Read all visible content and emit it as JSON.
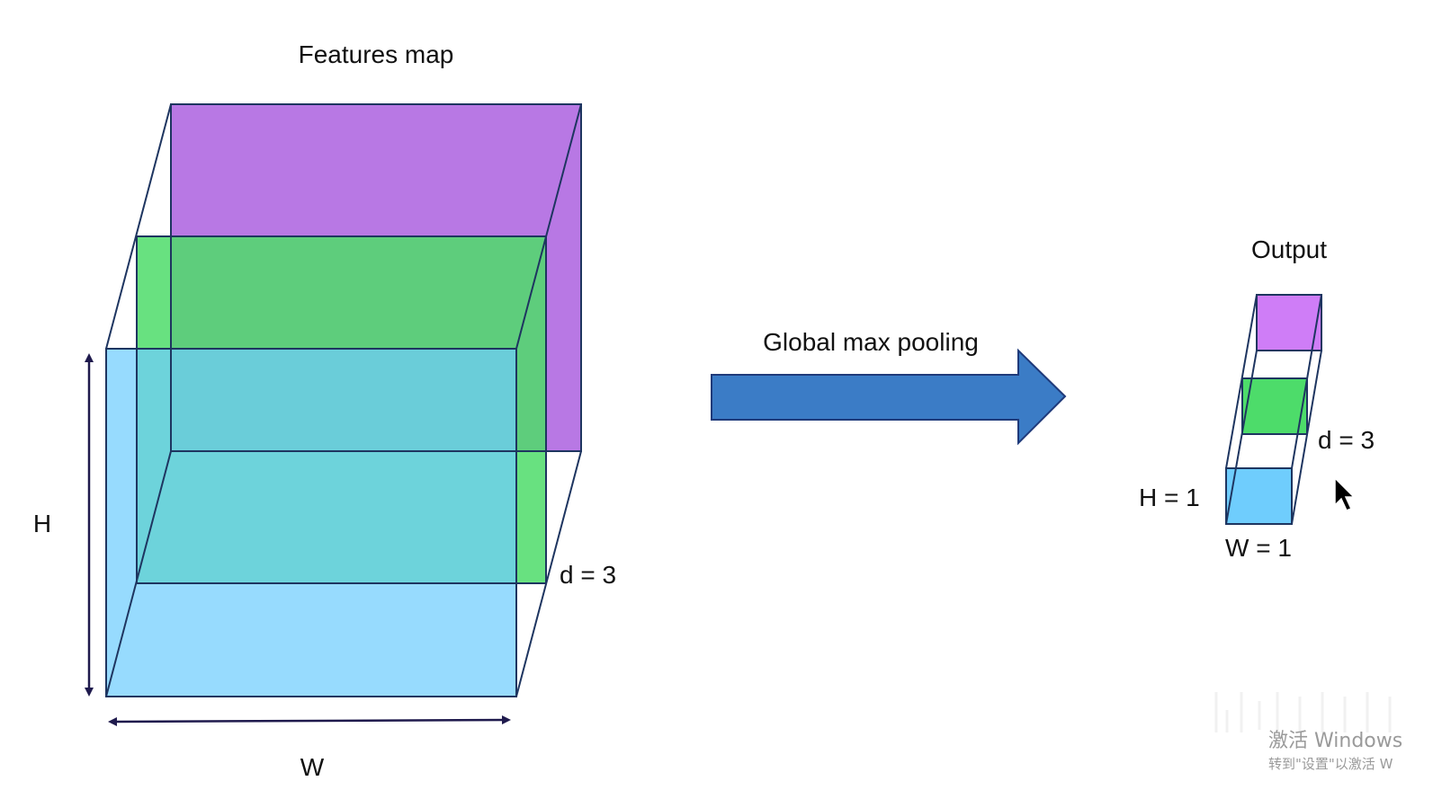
{
  "features_map": {
    "title": "Features map",
    "height_label": "H",
    "width_label": "W",
    "depth_label": "d = 3",
    "layers": [
      {
        "name": "purple",
        "color": "#b878e4"
      },
      {
        "name": "green",
        "color": "#4ddc6a"
      },
      {
        "name": "blue",
        "color": "#6fcdfd"
      }
    ]
  },
  "operation": {
    "label": "Global max pooling",
    "arrow_color": "#3b7cc6",
    "arrow_stroke": "#1f3a7a"
  },
  "output": {
    "title": "Output",
    "depth_label": "d = 3",
    "height_label": "H = 1",
    "width_label": "W = 1"
  },
  "watermark": {
    "line1": "激活 Windows",
    "line2": "转到\"设置\"以激活 W"
  },
  "cursor_icon": "mouse-pointer-icon"
}
